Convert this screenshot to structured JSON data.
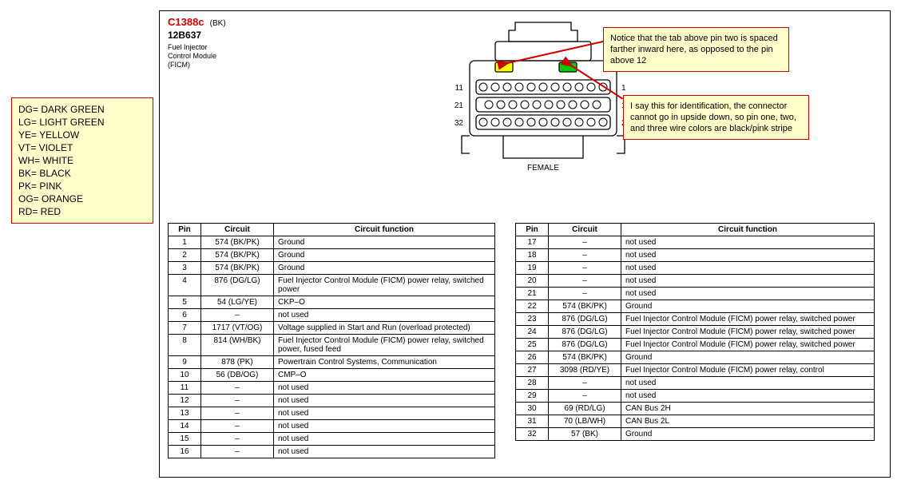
{
  "header": {
    "code": "C1388c",
    "suffix": "(BK)",
    "part": "12B637",
    "desc1": "Fuel Injector",
    "desc2": "Control Module",
    "desc3": "(FICM)",
    "female": "FEMALE"
  },
  "legend": [
    "DG= DARK GREEN",
    "LG= LIGHT GREEN",
    "YE= YELLOW",
    "VT= VIOLET",
    "WH= WHITE",
    "BK= BLACK",
    "PK= PINK",
    "OG= ORANGE",
    "RD= RED"
  ],
  "callouts": {
    "c1": "Notice that the tab above pin two is spaced farther inward here, as opposed to the pin above 12",
    "c2": "I say this for identification, the connector cannot go in upside down, so pin one, two, and three wire colors are black/pink stripe"
  },
  "table_headers": {
    "pin": "Pin",
    "circuit": "Circuit",
    "func": "Circuit function"
  },
  "connector": {
    "pin_labels": {
      "p11": "11",
      "p1": "1",
      "p21": "21",
      "p12": "12",
      "p32": "32",
      "p22": "22"
    },
    "tab_left_fill": "#ffff00",
    "tab_right_fill": "#00cc00",
    "stroke": "#000000"
  },
  "style": {
    "callout_bg": "#ffffcc",
    "callout_border": "#cc0000",
    "arrow_color": "#cc0000"
  },
  "table1": [
    {
      "pin": "1",
      "circuit": "574 (BK/PK)",
      "func": "Ground"
    },
    {
      "pin": "2",
      "circuit": "574 (BK/PK)",
      "func": "Ground"
    },
    {
      "pin": "3",
      "circuit": "574 (BK/PK)",
      "func": "Ground"
    },
    {
      "pin": "4",
      "circuit": "876 (DG/LG)",
      "func": "Fuel Injector Control Module (FICM) power relay, switched power"
    },
    {
      "pin": "5",
      "circuit": "54 (LG/YE)",
      "func": "CKP–O"
    },
    {
      "pin": "6",
      "circuit": "–",
      "func": "not used"
    },
    {
      "pin": "7",
      "circuit": "1717 (VT/OG)",
      "func": "Voltage supplied in Start and Run (overload protected)"
    },
    {
      "pin": "8",
      "circuit": "814 (WH/BK)",
      "func": "Fuel Injector Control Module (FICM) power relay, switched power, fused feed"
    },
    {
      "pin": "9",
      "circuit": "878 (PK)",
      "func": "Powertrain Control Systems, Communication"
    },
    {
      "pin": "10",
      "circuit": "56 (DB/OG)",
      "func": "CMP–O"
    },
    {
      "pin": "11",
      "circuit": "–",
      "func": "not used"
    },
    {
      "pin": "12",
      "circuit": "–",
      "func": "not used"
    },
    {
      "pin": "13",
      "circuit": "–",
      "func": "not used"
    },
    {
      "pin": "14",
      "circuit": "–",
      "func": "not used"
    },
    {
      "pin": "15",
      "circuit": "–",
      "func": "not used"
    },
    {
      "pin": "16",
      "circuit": "–",
      "func": "not used"
    }
  ],
  "table2": [
    {
      "pin": "17",
      "circuit": "–",
      "func": "not used"
    },
    {
      "pin": "18",
      "circuit": "–",
      "func": "not used"
    },
    {
      "pin": "19",
      "circuit": "–",
      "func": "not used"
    },
    {
      "pin": "20",
      "circuit": "–",
      "func": "not used"
    },
    {
      "pin": "21",
      "circuit": "–",
      "func": "not used"
    },
    {
      "pin": "22",
      "circuit": "574 (BK/PK)",
      "func": "Ground"
    },
    {
      "pin": "23",
      "circuit": "876 (DG/LG)",
      "func": "Fuel Injector Control Module (FICM) power relay, switched power"
    },
    {
      "pin": "24",
      "circuit": "876 (DG/LG)",
      "func": "Fuel Injector Control Module (FICM) power relay, switched power"
    },
    {
      "pin": "25",
      "circuit": "876 (DG/LG)",
      "func": "Fuel Injector Control Module (FICM) power relay, switched power"
    },
    {
      "pin": "26",
      "circuit": "574 (BK/PK)",
      "func": "Ground"
    },
    {
      "pin": "27",
      "circuit": "3098 (RD/YE)",
      "func": "Fuel Injector Control Module (FICM) power relay, control"
    },
    {
      "pin": "28",
      "circuit": "–",
      "func": "not used"
    },
    {
      "pin": "29",
      "circuit": "–",
      "func": "not used"
    },
    {
      "pin": "30",
      "circuit": "69 (RD/LG)",
      "func": "CAN Bus 2H"
    },
    {
      "pin": "31",
      "circuit": "70 (LB/WH)",
      "func": "CAN Bus 2L"
    },
    {
      "pin": "32",
      "circuit": "57 (BK)",
      "func": "Ground"
    }
  ]
}
